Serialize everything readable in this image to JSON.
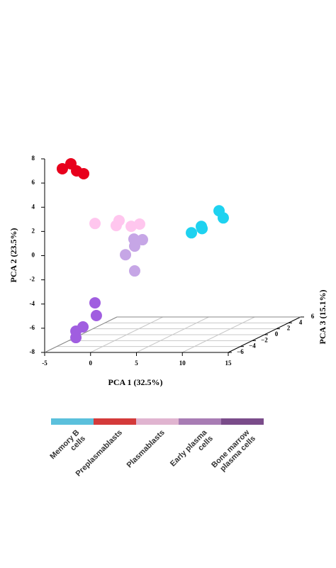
{
  "chart_data": {
    "type": "scatter3d",
    "xlabel": "PCA 1 (32.5%)",
    "ylabel": "PCA 2 (23.5%)",
    "zlabel": "PCA 3 (15.1%)",
    "xlim": [
      -5,
      15
    ],
    "xticks": [
      -5,
      0,
      5,
      10,
      15
    ],
    "ylim": [
      -8,
      8
    ],
    "yticks": [
      -8,
      -6,
      -4,
      -2,
      0,
      2,
      4,
      6,
      8
    ],
    "zlim": [
      -6,
      6
    ],
    "zticks": [
      {
        "value": -6,
        "label": "−6"
      },
      {
        "value": -4,
        "label": "−4"
      },
      {
        "value": -2,
        "label": "−2"
      },
      0,
      2,
      4,
      6
    ],
    "grid": true,
    "series": [
      {
        "name": "Memory B cells",
        "color": "#1ed2f0",
        "legend_color": "#5bc0dc",
        "x": [
          5.08,
          6.16,
          6.24,
          8.09,
          8.55
        ],
        "y": [
          -0.31,
          0.22,
          0.04,
          1.51,
          0.92
        ],
        "z": [
          3,
          3,
          3,
          3,
          3
        ]
      },
      {
        "name": "Preplasmablasts",
        "color": "#e8001c",
        "legend_color": "#d43a3a",
        "x": [
          -3.4,
          -2.47,
          -1.85,
          -1.08
        ],
        "y": [
          7.06,
          7.47,
          6.88,
          6.65
        ],
        "z": [
          -5.5,
          -5.5,
          -5.5,
          -5.5
        ]
      },
      {
        "name": "Plasmablasts",
        "color": "#ffc6ee",
        "legend_color": "#e0b4d0",
        "x": [
          -2.14,
          0.17,
          0.48,
          1.8,
          2.72
        ],
        "y": [
          1.68,
          1.51,
          1.92,
          1.45,
          1.63
        ],
        "z": [
          -2,
          -2,
          -2,
          -2,
          -2
        ]
      },
      {
        "name": "Early plasma cells",
        "color": "#c6a6e6",
        "legend_color": "#a87cb4",
        "x": [
          2.1,
          2.18,
          3.03,
          1.18,
          2.18
        ],
        "y": [
          0.39,
          -0.19,
          0.34,
          -0.9,
          -2.24
        ],
        "z": [
          -2,
          -2,
          -2,
          -2,
          -2
        ]
      },
      {
        "name": "Bone marrow plasma cells",
        "color": "#a05ee0",
        "legend_color": "#7a4c8a",
        "x": [
          -0.83,
          -0.68,
          -2.14,
          -2.91,
          -2.91
        ],
        "y": [
          -4.39,
          -5.44,
          -6.38,
          -6.73,
          -7.26
        ],
        "z": [
          -4,
          -4,
          -4,
          -4,
          -4
        ]
      }
    ]
  }
}
